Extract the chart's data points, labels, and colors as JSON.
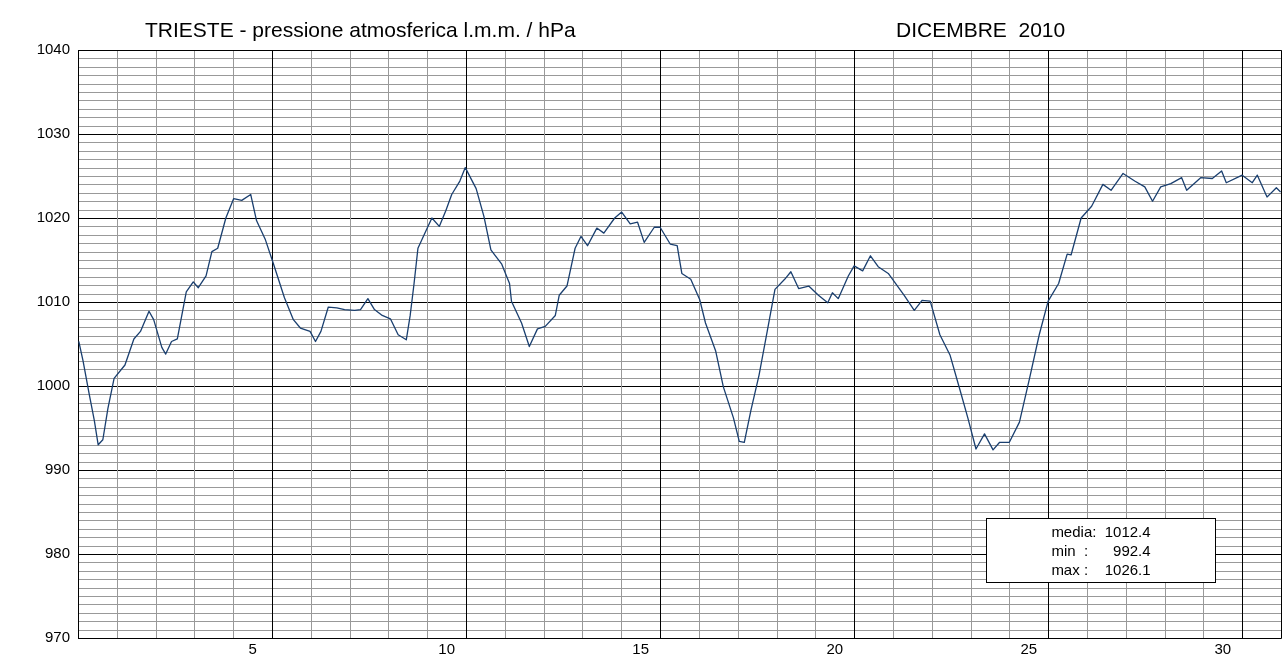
{
  "chart_data": {
    "type": "line",
    "title": "TRIESTE - pressione atmosferica l.m.m. / hPa",
    "subtitle": "DICEMBRE  2010",
    "xlim": [
      0,
      31
    ],
    "xticks": [
      {
        "value": 4.5,
        "label": "5"
      },
      {
        "value": 9.5,
        "label": "10"
      },
      {
        "value": 14.5,
        "label": "15"
      },
      {
        "value": 19.5,
        "label": "20"
      },
      {
        "value": 24.5,
        "label": "25"
      },
      {
        "value": 29.5,
        "label": "30"
      }
    ],
    "ylim": [
      970,
      1040
    ],
    "yticks": [
      970,
      980,
      990,
      1000,
      1010,
      1020,
      1030,
      1040
    ],
    "grid": true,
    "legend": false,
    "annotations": [
      "media:  1012.4",
      "min  :      992.4",
      "max :    1026.1"
    ],
    "series": [
      {
        "color": "#1a3f6f",
        "x": [
          0.02,
          0.13,
          0.29,
          0.42,
          0.52,
          0.64,
          0.77,
          0.93,
          1.21,
          1.44,
          1.61,
          1.83,
          1.95,
          2.16,
          2.26,
          2.41,
          2.56,
          2.79,
          2.97,
          3.1,
          3.3,
          3.45,
          3.6,
          3.81,
          4.01,
          4.22,
          4.45,
          4.6,
          4.83,
          5.04,
          5.32,
          5.55,
          5.73,
          5.98,
          6.12,
          6.26,
          6.45,
          6.67,
          6.87,
          7.13,
          7.28,
          7.47,
          7.64,
          7.84,
          8.05,
          8.25,
          8.46,
          8.56,
          8.66,
          8.76,
          8.97,
          9.12,
          9.31,
          9.48,
          9.63,
          9.84,
          9.98,
          10.26,
          10.46,
          10.64,
          10.92,
          11.12,
          11.17,
          11.43,
          11.63,
          11.84,
          12.04,
          12.3,
          12.4,
          12.6,
          12.81,
          12.96,
          13.13,
          13.37,
          13.55,
          13.83,
          14.01,
          14.23,
          14.42,
          14.59,
          14.85,
          15.0,
          15.26,
          15.44,
          15.56,
          15.79,
          16.02,
          16.17,
          16.43,
          16.63,
          16.89,
          17.04,
          17.17,
          17.34,
          17.55,
          17.76,
          17.96,
          18.21,
          18.37,
          18.57,
          18.83,
          19.08,
          19.32,
          19.44,
          19.59,
          19.85,
          20.0,
          20.22,
          20.42,
          20.62,
          20.88,
          21.29,
          21.55,
          21.75,
          21.96,
          22.21,
          22.47,
          22.73,
          22.93,
          23.14,
          23.36,
          23.58,
          23.75,
          24.0,
          24.26,
          24.52,
          24.77,
          25.0,
          25.27,
          25.49,
          25.59,
          25.85,
          26.12,
          26.41,
          26.62,
          26.93,
          27.23,
          27.49,
          27.69,
          27.9,
          28.16,
          28.44,
          28.57,
          28.93,
          29.23,
          29.47,
          29.59,
          30.0,
          30.26,
          30.39,
          30.64,
          30.88,
          30.99
        ],
        "values": [
          1005.3,
          1003.0,
          999.0,
          995.9,
          993.0,
          993.6,
          997.3,
          1000.9,
          1002.5,
          1005.6,
          1006.5,
          1008.9,
          1007.9,
          1004.6,
          1003.8,
          1005.3,
          1005.6,
          1011.2,
          1012.4,
          1011.7,
          1013.1,
          1016.0,
          1016.4,
          1020.0,
          1022.3,
          1022.1,
          1022.8,
          1019.7,
          1017.4,
          1014.5,
          1010.5,
          1007.9,
          1006.9,
          1006.5,
          1005.3,
          1006.5,
          1009.4,
          1009.3,
          1009.1,
          1009.0,
          1009.1,
          1010.4,
          1009.1,
          1008.4,
          1008.0,
          1006.1,
          1005.5,
          1008.4,
          1012.2,
          1016.4,
          1018.5,
          1020.0,
          1019.0,
          1020.9,
          1022.8,
          1024.4,
          1026.0,
          1023.5,
          1020.2,
          1016.2,
          1014.5,
          1012.2,
          1010.1,
          1007.5,
          1004.7,
          1006.8,
          1007.1,
          1008.4,
          1010.8,
          1011.9,
          1016.4,
          1017.8,
          1016.7,
          1018.8,
          1018.2,
          1020.0,
          1020.7,
          1019.3,
          1019.5,
          1017.1,
          1018.9,
          1018.9,
          1016.9,
          1016.7,
          1013.4,
          1012.7,
          1010.3,
          1007.5,
          1004.2,
          999.9,
          996.2,
          993.4,
          993.3,
          997.1,
          1001.3,
          1006.5,
          1011.5,
          1012.7,
          1013.6,
          1011.6,
          1011.9,
          1010.8,
          1009.9,
          1011.1,
          1010.4,
          1013.1,
          1014.3,
          1013.7,
          1015.5,
          1014.2,
          1013.4,
          1010.8,
          1009.0,
          1010.2,
          1010.1,
          1006.1,
          1003.7,
          999.5,
          996.2,
          992.5,
          994.3,
          992.4,
          993.3,
          993.3,
          995.7,
          1000.9,
          1006.1,
          1010.1,
          1012.2,
          1015.7,
          1015.6,
          1020.0,
          1021.4,
          1024.0,
          1023.3,
          1025.3,
          1024.4,
          1023.7,
          1022.0,
          1023.7,
          1024.1,
          1024.8,
          1023.3,
          1024.8,
          1024.7,
          1025.6,
          1024.2,
          1025.1,
          1024.2,
          1025.1,
          1022.5,
          1023.6,
          1023.1
        ]
      }
    ]
  }
}
